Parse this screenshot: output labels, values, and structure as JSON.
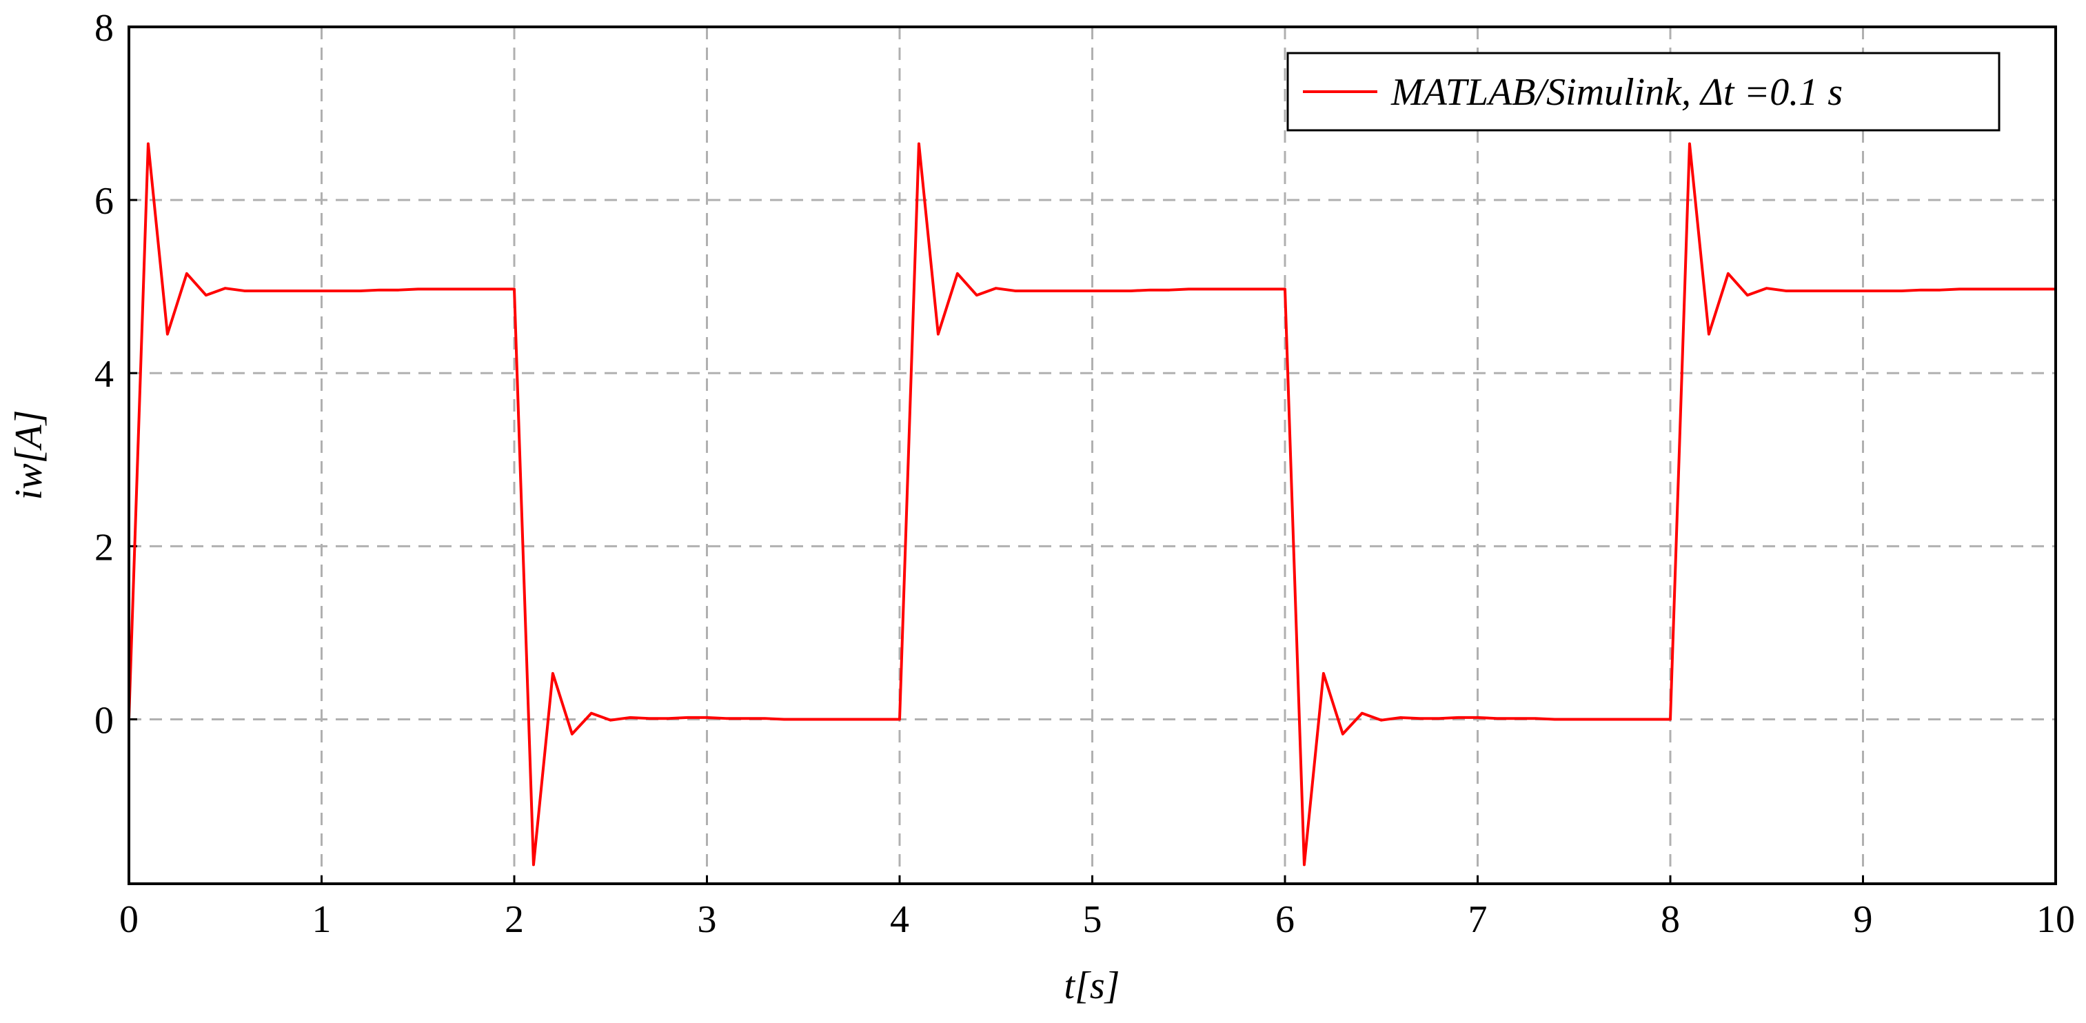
{
  "chart_data": {
    "type": "line",
    "x_label": "t[s]",
    "y_label": "iw[A]",
    "x": [
      0,
      0.1,
      0.2,
      0.3,
      0.4,
      0.5,
      0.6,
      0.7,
      0.8,
      0.9,
      1,
      1.1,
      1.2,
      1.3,
      1.4,
      1.5,
      1.6,
      1.7,
      1.8,
      1.9,
      2,
      2.1,
      2.2,
      2.3,
      2.4,
      2.5,
      2.6,
      2.7,
      2.8,
      2.9,
      3,
      3.1,
      3.2,
      3.3,
      3.4,
      3.5,
      3.6,
      3.7,
      3.8,
      3.9,
      4,
      4.1,
      4.2,
      4.3,
      4.4,
      4.5,
      4.6,
      4.7,
      4.8,
      4.9,
      5,
      5.1,
      5.2,
      5.3,
      5.4,
      5.5,
      5.6,
      5.7,
      5.8,
      5.9,
      6,
      6.1,
      6.2,
      6.3,
      6.4,
      6.5,
      6.6,
      6.7,
      6.8,
      6.9,
      7,
      7.1,
      7.2,
      7.3,
      7.4,
      7.5,
      7.6,
      7.7,
      7.8,
      7.9,
      8,
      8.1,
      8.2,
      8.3,
      8.4,
      8.5,
      8.6,
      8.7,
      8.8,
      8.9,
      9,
      9.1,
      9.2,
      9.3,
      9.4,
      9.5,
      9.6,
      9.7,
      9.8,
      9.9,
      10
    ],
    "series": [
      {
        "name": "MATLAB/Simulink, Δt =0.1 s",
        "color": "#ff0000",
        "values": [
          0,
          6.65,
          4.45,
          5.15,
          4.9,
          4.98,
          4.95,
          4.95,
          4.95,
          4.95,
          4.95,
          4.95,
          4.95,
          4.96,
          4.96,
          4.97,
          4.97,
          4.97,
          4.97,
          4.97,
          4.97,
          -1.68,
          0.53,
          -0.17,
          0.07,
          -0.01,
          0.02,
          0.01,
          0.01,
          0.02,
          0.02,
          0.01,
          0.01,
          0.01,
          0,
          0,
          0,
          0,
          0,
          0,
          0,
          6.65,
          4.45,
          5.15,
          4.9,
          4.98,
          4.95,
          4.95,
          4.95,
          4.95,
          4.95,
          4.95,
          4.95,
          4.96,
          4.96,
          4.97,
          4.97,
          4.97,
          4.97,
          4.97,
          4.97,
          -1.68,
          0.53,
          -0.17,
          0.07,
          -0.01,
          0.02,
          0.01,
          0.01,
          0.02,
          0.02,
          0.01,
          0.01,
          0.01,
          0,
          0,
          0,
          0,
          0,
          0,
          0,
          6.65,
          4.45,
          5.15,
          4.9,
          4.98,
          4.95,
          4.95,
          4.95,
          4.95,
          4.95,
          4.95,
          4.95,
          4.96,
          4.96,
          4.97,
          4.97,
          4.97,
          4.97,
          4.97,
          4.97
        ]
      }
    ],
    "xlim": [
      0,
      10
    ],
    "xticks": [
      0,
      1,
      2,
      3,
      4,
      5,
      6,
      7,
      8,
      9,
      10
    ],
    "ylim": [
      -1.9,
      8
    ],
    "yticks": [
      0,
      2,
      4,
      6,
      8
    ],
    "grid": true,
    "legend": "upper right"
  }
}
